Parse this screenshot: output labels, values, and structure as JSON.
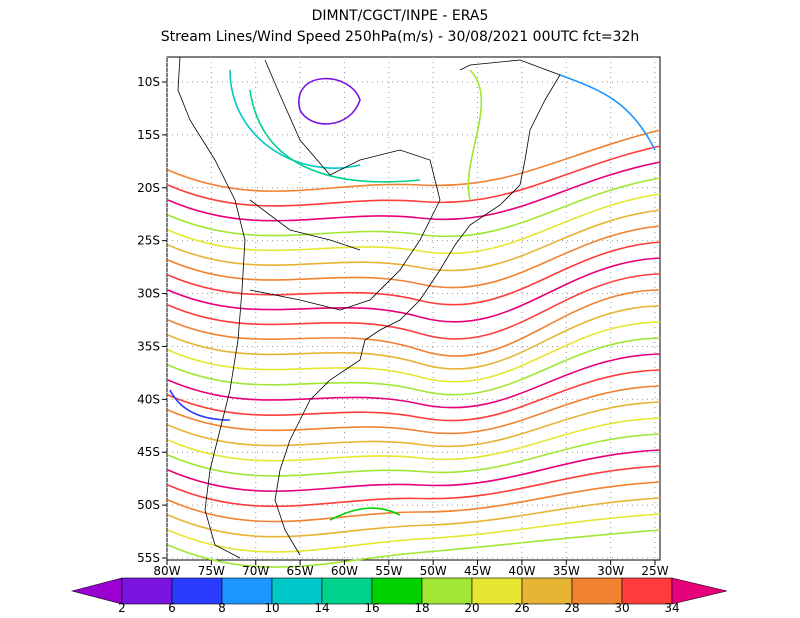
{
  "header": {
    "title": "DIMNT/CGCT/INPE  -  ERA5",
    "subtitle": "Stream Lines/Wind Speed 250hPa(m/s)  -  30/08/2021 00UTC fct=32h"
  },
  "map": {
    "lat_labels": [
      "10S",
      "15S",
      "20S",
      "25S",
      "30S",
      "35S",
      "40S",
      "45S",
      "50S",
      "55S"
    ],
    "lon_labels": [
      "80W",
      "75W",
      "70W",
      "65W",
      "60W",
      "55W",
      "50W",
      "45W",
      "40W",
      "35W",
      "30W",
      "25W"
    ]
  },
  "colorbar": {
    "labels": [
      "2",
      "6",
      "8",
      "10",
      "14",
      "16",
      "18",
      "20",
      "26",
      "28",
      "30",
      "34"
    ],
    "colors": [
      "#9a00d0",
      "#7a14e0",
      "#2a3cff",
      "#1e96ff",
      "#00c8c8",
      "#00d28c",
      "#00d200",
      "#a0e632",
      "#e6e632",
      "#e6b432",
      "#f08232",
      "#ff3c3c",
      "#e6007a"
    ]
  }
}
